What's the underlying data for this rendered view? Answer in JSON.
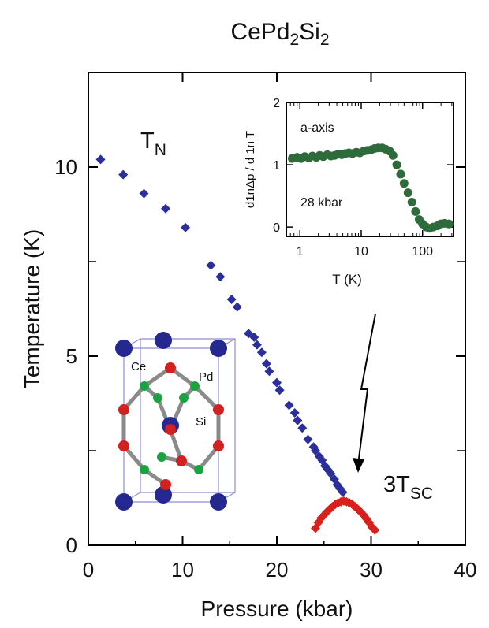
{
  "chart_data": [
    {
      "type": "scatter",
      "title": "CePd",
      "title_sub1": "2",
      "title_mid": "Si",
      "title_sub2": "2",
      "xlabel": "Pressure (kbar)",
      "ylabel": "Temperature (K)",
      "xlim": [
        0,
        40
      ],
      "ylim": [
        0,
        12.5
      ],
      "xticks": [
        "0",
        "10",
        "20",
        "30",
        "40"
      ],
      "yticks": [
        "0",
        "5",
        "10"
      ],
      "xtick_values": [
        0,
        10,
        20,
        30,
        40
      ],
      "ytick_values": [
        0,
        5,
        10
      ],
      "series": [
        {
          "name": "T_N",
          "color": "#2b2f9b",
          "marker": "diamond",
          "x": [
            1.3,
            3.7,
            5.9,
            8.2,
            10.3,
            13.0,
            14.0,
            15.2,
            15.8,
            17.0,
            17.6,
            17.9,
            18.4,
            18.9,
            19.2,
            20.0,
            20.3,
            21.3,
            21.9,
            22.2,
            22.7,
            23.3,
            23.9,
            24.1,
            24.5,
            24.8,
            25.1,
            25.4,
            25.7,
            26.1,
            26.4,
            26.7,
            27.0
          ],
          "y": [
            10.2,
            9.8,
            9.3,
            8.9,
            8.4,
            7.4,
            7.1,
            6.5,
            6.3,
            5.6,
            5.5,
            5.3,
            5.1,
            4.8,
            4.6,
            4.3,
            4.1,
            3.7,
            3.5,
            3.3,
            3.1,
            2.8,
            2.6,
            2.5,
            2.35,
            2.25,
            2.1,
            2.0,
            1.9,
            1.75,
            1.6,
            1.5,
            1.4
          ]
        },
        {
          "name": "3T_SC",
          "color": "#d9201c",
          "marker": "diamond",
          "x": [
            24.1,
            24.4,
            24.7,
            25.0,
            25.3,
            25.6,
            25.9,
            26.2,
            26.5,
            26.8,
            27.1,
            27.4,
            27.7,
            28.0,
            28.3,
            28.6,
            28.9,
            29.2,
            29.5,
            29.8,
            30.1,
            30.4
          ],
          "y": [
            0.45,
            0.6,
            0.72,
            0.8,
            0.88,
            0.95,
            1.02,
            1.08,
            1.12,
            1.15,
            1.17,
            1.15,
            1.12,
            1.08,
            1.02,
            0.95,
            0.88,
            0.8,
            0.7,
            0.6,
            0.48,
            0.4
          ]
        }
      ],
      "annotations": [
        {
          "main": "T",
          "sub": "N",
          "x": 7.2,
          "y": 10.7
        },
        {
          "main": "3T",
          "sub": "SC",
          "x": 31.5,
          "y": 1.35
        }
      ]
    },
    {
      "type": "scatter",
      "xlabel": "T (K)",
      "ylabel": "d1nΔp / d 1n T",
      "xscale": "log",
      "xlim": [
        0.6,
        320
      ],
      "ylim": [
        -0.15,
        2.0
      ],
      "xticks": [
        "1",
        "10",
        "100"
      ],
      "xtick_values": [
        1,
        10,
        100
      ],
      "yticks": [
        "0",
        "1",
        "2"
      ],
      "ytick_values": [
        0,
        1,
        2
      ],
      "series": [
        {
          "name": "a-axis 28 kbar",
          "color": "#2e6b3a",
          "marker": "circle",
          "x": [
            0.75,
            0.9,
            1.05,
            1.2,
            1.4,
            1.6,
            1.85,
            2.1,
            2.4,
            2.8,
            3.2,
            3.7,
            4.2,
            4.8,
            5.5,
            6.3,
            7.2,
            8.3,
            9.5,
            11,
            12.5,
            14.5,
            16.5,
            19,
            22,
            25,
            29,
            33,
            38,
            44,
            50,
            58,
            67,
            77,
            88,
            100,
            115,
            130,
            150,
            175,
            200,
            230,
            270
          ],
          "y": [
            1.1,
            1.12,
            1.1,
            1.13,
            1.11,
            1.14,
            1.12,
            1.15,
            1.13,
            1.16,
            1.14,
            1.15,
            1.17,
            1.16,
            1.18,
            1.19,
            1.18,
            1.2,
            1.19,
            1.22,
            1.23,
            1.24,
            1.26,
            1.27,
            1.27,
            1.25,
            1.22,
            1.15,
            1.0,
            0.85,
            0.7,
            0.55,
            0.4,
            0.25,
            0.12,
            0.05,
            0.0,
            -0.02,
            0.0,
            0.02,
            0.05,
            0.06,
            0.05
          ]
        }
      ],
      "annotations": [
        {
          "text": "a-axis",
          "x": 1.2,
          "y": 1.55
        },
        {
          "text": "28 kbar",
          "x": 1.2,
          "y": 0.4
        }
      ]
    }
  ],
  "structure_labels": {
    "ce": "Ce",
    "pd": "Pd",
    "si": "Si"
  },
  "colors": {
    "ce": "#25288f",
    "pd": "#1aa342",
    "si": "#d32020",
    "frame": "#8e8ed8"
  }
}
